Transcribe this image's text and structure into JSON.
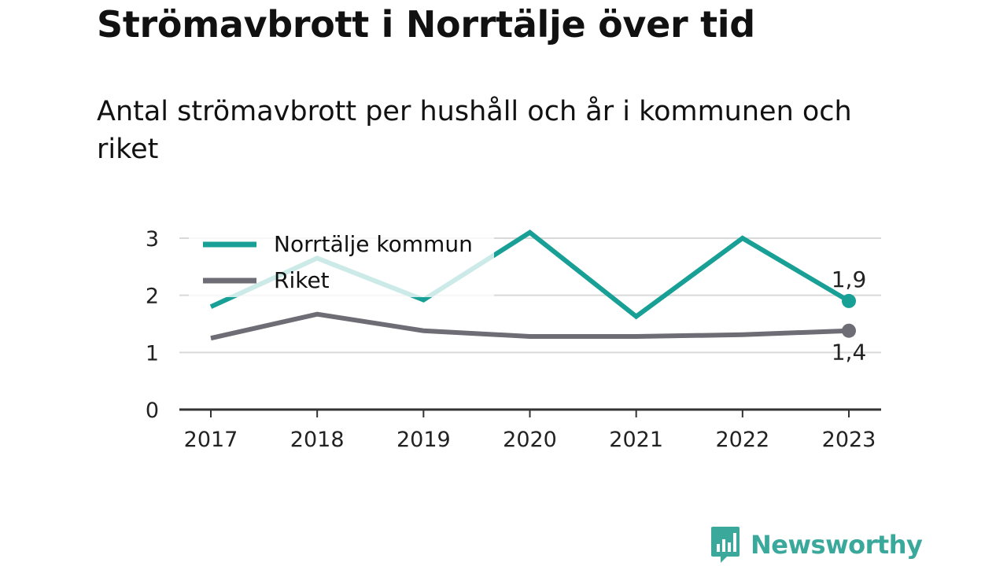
{
  "title": "Strömavbrott i Norrtälje över tid",
  "subtitle": "Antal strömavbrott per hushåll och år i kommunen och riket",
  "brand": {
    "name": "Newsworthy",
    "icon": "bar-chart-bubble-icon",
    "color": "#3aa89b"
  },
  "chart_data": {
    "type": "line",
    "categories": [
      "2017",
      "2018",
      "2019",
      "2020",
      "2021",
      "2022",
      "2023"
    ],
    "ylim": [
      0,
      3
    ],
    "yticks": [
      "0",
      "1",
      "2",
      "3"
    ],
    "grid": true,
    "legend": "top-left",
    "series": [
      {
        "name": "Norrtälje kommun",
        "color": "#18a096",
        "values": [
          1.8,
          2.65,
          1.92,
          3.1,
          1.63,
          3.0,
          1.9
        ],
        "end_label": "1,9"
      },
      {
        "name": "Riket",
        "color": "#6e6c74",
        "values": [
          1.25,
          1.67,
          1.38,
          1.28,
          1.28,
          1.31,
          1.38
        ],
        "end_label": "1,4"
      }
    ]
  }
}
